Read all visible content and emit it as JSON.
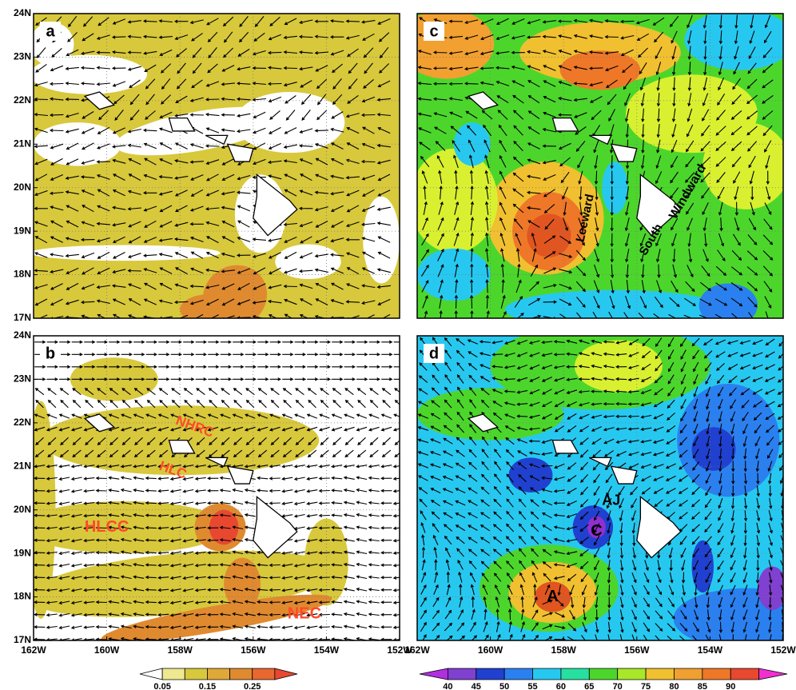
{
  "panels": [
    {
      "label": "a"
    },
    {
      "label": "c",
      "annotations": [
        "Leeward",
        "Windward",
        "South"
      ]
    },
    {
      "label": "b",
      "annotations": [
        "NHRC",
        "HLC",
        "HLCC",
        "NEC"
      ]
    },
    {
      "label": "d",
      "annotations": [
        "AJ",
        "C",
        "A"
      ]
    }
  ],
  "yticks": [
    "24N",
    "23N",
    "22N",
    "21N",
    "20N",
    "19N",
    "18N",
    "17N"
  ],
  "xticks": [
    "162W",
    "160W",
    "158W",
    "156W",
    "154W",
    "152W"
  ],
  "colorbars": [
    {
      "labels": [
        "0.05",
        "0.15",
        "0.25"
      ]
    },
    {
      "labels": [
        "40",
        "45",
        "50",
        "55",
        "60",
        "65",
        "70",
        "75",
        "80",
        "85",
        "90"
      ]
    }
  ]
}
